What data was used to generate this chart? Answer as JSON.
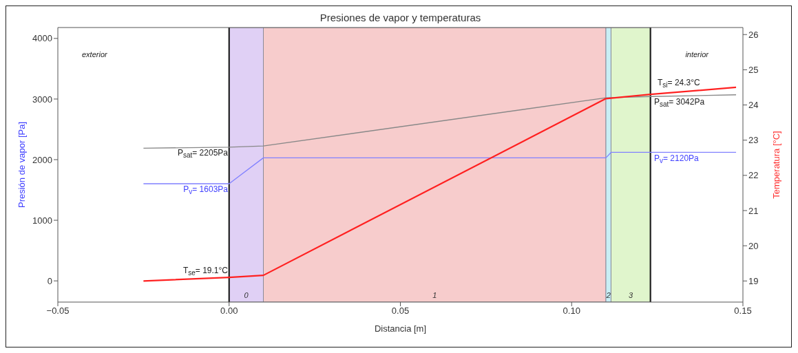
{
  "chart_data": {
    "type": "line",
    "title": "Presiones de vapor y temperaturas",
    "xlabel": "Distancia [m]",
    "ylabel": "Presión de vapor [Pa]",
    "y2label": "Temperatura [°C]",
    "xlim": [
      -0.05,
      0.15
    ],
    "xticks": [
      {
        "value": -0.05,
        "label": "−0.05"
      },
      {
        "value": 0,
        "label": "0.00"
      },
      {
        "value": 0.05,
        "label": "0.05"
      },
      {
        "value": 0.1,
        "label": "0.10"
      },
      {
        "value": 0.15,
        "label": "0.15"
      }
    ],
    "ylim": [
      -350,
      4180
    ],
    "yticks": [
      0,
      1000,
      2000,
      3000,
      4000
    ],
    "y2lim": [
      18.4,
      26.2
    ],
    "y2ticks": [
      19,
      20,
      21,
      22,
      23,
      24,
      25,
      26
    ],
    "marker": "none",
    "line_style": "solid",
    "series": [
      {
        "color": "#888888",
        "x": [
          -0.025,
          0,
          0.01,
          0.11,
          0.123,
          0.148
        ],
        "values": [
          2190,
          2205,
          2225,
          3020,
          3042,
          3070
        ]
      },
      {
        "color": "#8080ff",
        "x": [
          -0.025,
          0,
          0.01,
          0.11,
          0.1115,
          0.148
        ],
        "values": [
          1603,
          1603,
          2030,
          2030,
          2120,
          2120
        ]
      },
      {
        "color": "#ff2020",
        "axis": "y2",
        "x": [
          -0.025,
          0,
          0.01,
          0.11,
          0.123,
          0.148
        ],
        "values": [
          19.0,
          19.1,
          19.16,
          24.18,
          24.3,
          24.5
        ]
      }
    ],
    "bands": [
      {
        "axis": "x",
        "from": 0,
        "to": 0.01,
        "label": "0",
        "color": "#e0d0f5"
      },
      {
        "axis": "x",
        "from": 0.01,
        "to": 0.11,
        "label": "1",
        "color": "#f7cccc"
      },
      {
        "axis": "x",
        "from": 0.11,
        "to": 0.1115,
        "label": "2",
        "color": "#c8eef5"
      },
      {
        "axis": "x",
        "from": 0.1115,
        "to": 0.123,
        "label": "3",
        "color": "#e0f5cc"
      }
    ],
    "ref_lines": [
      {
        "axis": "x",
        "value": 0,
        "color": "#202020"
      },
      {
        "axis": "x",
        "value": 0.123,
        "color": "#202020"
      }
    ],
    "annotations": [
      "exterior",
      "interior",
      "T$_{se}$= 19.1°C",
      "T$_{si}$= 24.3°C",
      "P$_{sat}$= 2205Pa",
      "P$_{v}$= 1603Pa",
      "P$_{sat}$= 3042Pa",
      "P$_{v}$= 2120Pa"
    ]
  }
}
